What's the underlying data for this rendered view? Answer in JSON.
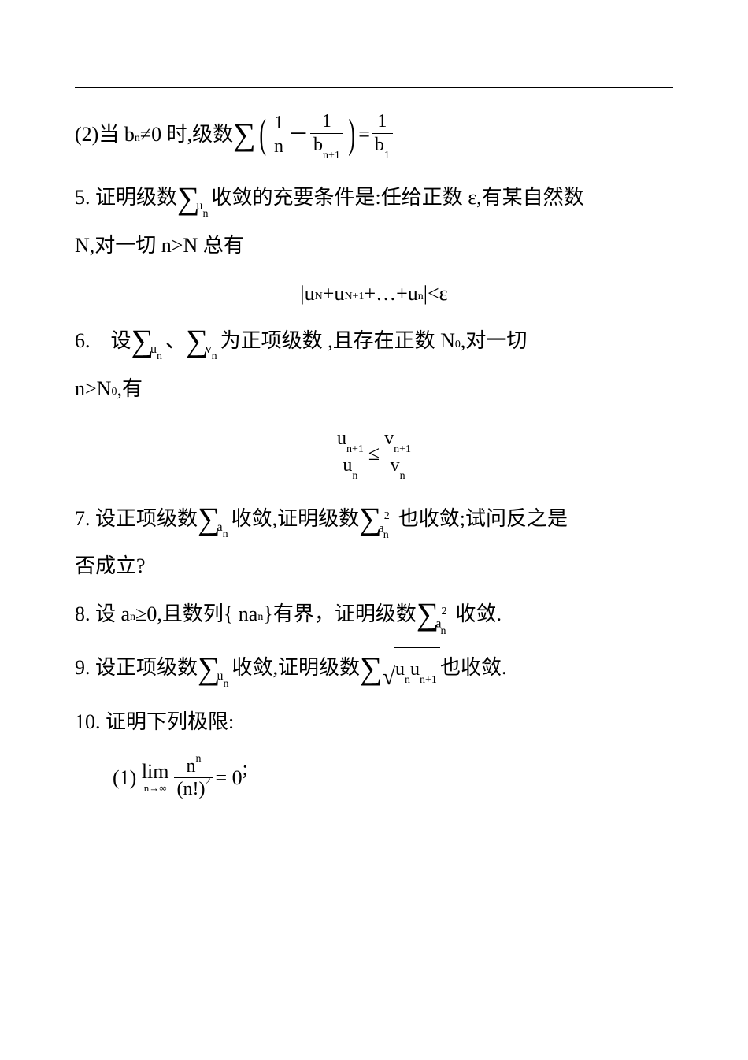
{
  "p2_prefix": "(2)当 b",
  "p2_sub": "n",
  "p2_mid": "≠0 时,级数 ",
  "p2_frac1_num": "1",
  "p2_frac1_den": "n",
  "p2_minus": "－",
  "p2_frac2_num": "1",
  "p2_frac2_den_b": "b",
  "p2_frac2_den_sub": "n+1",
  "p2_eq": " = ",
  "p2_frac3_num": "1",
  "p2_frac3_den_b": "b",
  "p2_frac3_den_sub": "1",
  "p5_a": "5. 证明级数 ",
  "p5_u": "u",
  "p5_usub": "n",
  "p5_b": " 收敛的充要条件是:任给正数 ε,有某自然数",
  "p5_c": "N,对一切 n>N 总有",
  "p5_center": "|u",
  "p5_center_N": "N",
  "p5_center_2": "+u",
  "p5_center_N1": "N+1",
  "p5_center_3": "+…+u",
  "p5_center_nn": "n",
  "p5_center_4": "|<ε",
  "p6_a": "6.　设 ",
  "p6_u": "u",
  "p6_usub": "n",
  "p6_comma": "、",
  "p6_v": "v",
  "p6_vsub": "n",
  "p6_b": " 为正项级数 ,且存在正数 N",
  "p6_b_sub": "0",
  "p6_c": ",对一切",
  "p6_d": "n>N",
  "p6_d_sub": "0",
  "p6_e": ",有",
  "p6_frac1_num_u": "u",
  "p6_frac1_num_sub": "n+1",
  "p6_frac1_den_u": "u",
  "p6_frac1_den_sub": "n",
  "p6_le": " ≤ ",
  "p6_frac2_num_v": "v",
  "p6_frac2_num_sub": "n+1",
  "p6_frac2_den_v": "v",
  "p6_frac2_den_sub": "n",
  "p7_a": "7. 设正项级数 ",
  "p7_a1": "a",
  "p7_a1sub": "n",
  "p7_b": " 收敛,证明级数 ",
  "p7_a2": "a",
  "p7_a2sup": "2",
  "p7_a2sub": "n",
  "p7_c": " 也收敛;试问反之是",
  "p7_d": "否成立?",
  "p8_a": "8. 设 a",
  "p8_a_sub": "n",
  "p8_b": "≥0,且数列{ na",
  "p8_b_sub": "n",
  "p8_c": "}有界，证明级数 ",
  "p8_s_a": "a",
  "p8_s_sup": "2",
  "p8_s_sub": "n",
  "p8_d": " 收敛.",
  "p9_a": "9. 设正项级数 ",
  "p9_u": "u",
  "p9_usub": "n",
  "p9_b": " 收敛,证明级数 ",
  "p9_sqrt_u1": "u",
  "p9_sqrt_s1": "n",
  "p9_sqrt_u2": "u",
  "p9_sqrt_s2": "n+1",
  "p9_c": " 也收敛.",
  "p10": "10. 证明下列极限:",
  "p10_1_label": "(1) ",
  "p10_1_lim": "lim",
  "p10_1_limsub": "n→∞",
  "p10_1_num_n": "n",
  "p10_1_num_sup": "n",
  "p10_1_den": "(n!)",
  "p10_1_den_sup": "2",
  "p10_1_eq": " = 0",
  "p10_1_semi": ";"
}
